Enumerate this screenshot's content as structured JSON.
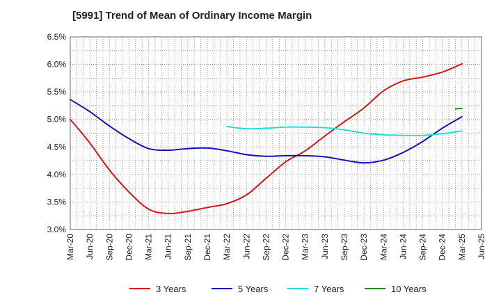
{
  "chart_data": {
    "type": "line",
    "title": "[5991]  Trend of Mean of Ordinary Income Margin",
    "xlabel": "",
    "ylabel": "",
    "x": [
      "Mar-20",
      "Jun-20",
      "Sep-20",
      "Dec-20",
      "Mar-21",
      "Jun-21",
      "Sep-21",
      "Dec-21",
      "Mar-22",
      "Jun-22",
      "Sep-22",
      "Dec-22",
      "Mar-23",
      "Jun-23",
      "Sep-23",
      "Dec-23",
      "Mar-24",
      "Jun-24",
      "Sep-24",
      "Dec-24",
      "Mar-25",
      "Jun-25"
    ],
    "ylim": [
      3.0,
      6.5
    ],
    "yticks": [
      3.0,
      3.5,
      4.0,
      4.5,
      5.0,
      5.5,
      6.0,
      6.5
    ],
    "ytick_labels": [
      "3.0%",
      "3.5%",
      "4.0%",
      "4.5%",
      "5.0%",
      "5.5%",
      "6.0%",
      "6.5%"
    ],
    "grid": true,
    "legend_position": "bottom",
    "series": [
      {
        "name": "3 Years",
        "color": "#dd1111",
        "values": [
          5.0,
          4.57,
          4.08,
          3.68,
          3.37,
          3.29,
          3.33,
          3.4,
          3.47,
          3.63,
          3.93,
          4.23,
          4.43,
          4.7,
          4.96,
          5.21,
          5.52,
          5.7,
          5.77,
          5.86,
          6.01,
          null
        ]
      },
      {
        "name": "5 Years",
        "color": "#1111bb",
        "values": [
          5.36,
          5.14,
          4.88,
          4.65,
          4.47,
          4.44,
          4.47,
          4.48,
          4.43,
          4.36,
          4.33,
          4.34,
          4.34,
          4.32,
          4.26,
          4.21,
          4.26,
          4.4,
          4.6,
          4.84,
          5.05,
          null
        ]
      },
      {
        "name": "7 Years",
        "color": "#22dddd",
        "values": [
          null,
          null,
          null,
          null,
          null,
          null,
          null,
          null,
          4.87,
          4.83,
          4.84,
          4.86,
          4.86,
          4.85,
          4.81,
          4.75,
          4.72,
          4.71,
          4.71,
          4.74,
          4.79,
          null
        ]
      },
      {
        "name": "10 Years",
        "color": "#228822",
        "values": [
          null,
          null,
          null,
          null,
          null,
          null,
          null,
          null,
          null,
          null,
          null,
          null,
          null,
          null,
          null,
          null,
          null,
          null,
          null,
          null,
          5.2,
          null
        ],
        "prev_value": 5.19
      }
    ]
  }
}
